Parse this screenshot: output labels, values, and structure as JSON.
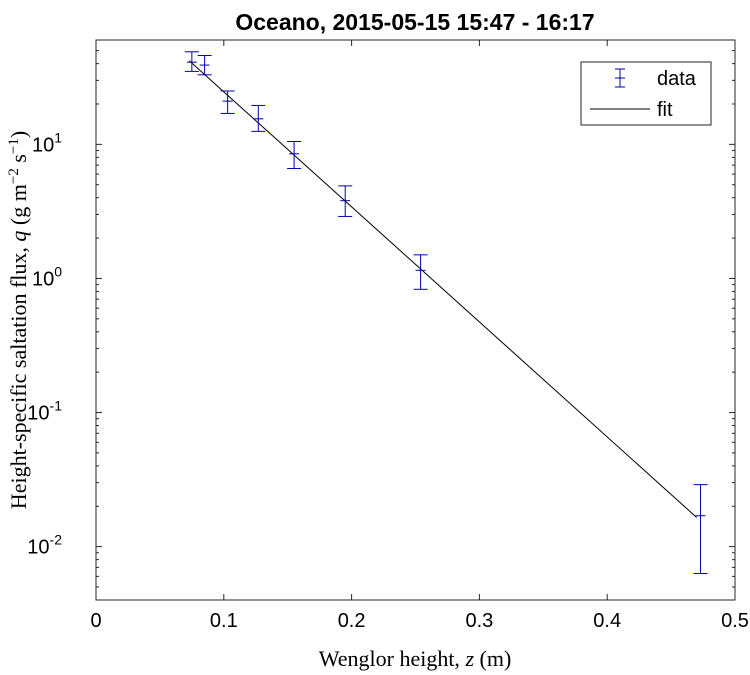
{
  "chart_data": {
    "type": "scatter",
    "title": "Oceano, 2015-05-15 15:47 - 16:17",
    "xlabel": {
      "prefix": "Wenglor height, ",
      "symbol": "z",
      "suffix": " (m)"
    },
    "ylabel": {
      "prefix": "Height-specific saltation flux, ",
      "symbol": "q",
      "unit_open": " (g m",
      "unit_exp1": "−2",
      "unit_mid": " s",
      "unit_exp2": "−1",
      "unit_close": ")"
    },
    "xlim": [
      0,
      0.5
    ],
    "ylim": [
      0.004,
      60
    ],
    "yscale": "log",
    "grid": false,
    "legend_position": "top-right",
    "x_ticks": [
      {
        "value": 0,
        "label": "0"
      },
      {
        "value": 0.1,
        "label": "0.1"
      },
      {
        "value": 0.2,
        "label": "0.2"
      },
      {
        "value": 0.3,
        "label": "0.3"
      },
      {
        "value": 0.4,
        "label": "0.4"
      },
      {
        "value": 0.5,
        "label": "0.5"
      }
    ],
    "y_ticks": [
      {
        "value": 0.01,
        "base": "10",
        "exp": "-2"
      },
      {
        "value": 0.1,
        "base": "10",
        "exp": "-1"
      },
      {
        "value": 1,
        "base": "10",
        "exp": "0"
      },
      {
        "value": 10,
        "base": "10",
        "exp": "1"
      }
    ],
    "series": [
      {
        "name": "data",
        "kind": "errorbar",
        "color": "#0000aa",
        "points": [
          {
            "x": 0.075,
            "y": 41,
            "lo": 35,
            "hi": 49
          },
          {
            "x": 0.085,
            "y": 39,
            "lo": 33,
            "hi": 46
          },
          {
            "x": 0.103,
            "y": 21,
            "lo": 17,
            "hi": 25
          },
          {
            "x": 0.127,
            "y": 15.5,
            "lo": 12.5,
            "hi": 19.5
          },
          {
            "x": 0.155,
            "y": 8.5,
            "lo": 6.6,
            "hi": 10.5
          },
          {
            "x": 0.195,
            "y": 3.8,
            "lo": 2.9,
            "hi": 4.9
          },
          {
            "x": 0.254,
            "y": 1.15,
            "lo": 0.83,
            "hi": 1.5
          },
          {
            "x": 0.473,
            "y": 0.017,
            "lo": 0.0063,
            "hi": 0.029
          }
        ]
      },
      {
        "name": "fit",
        "kind": "line",
        "color": "#000000",
        "x": [
          0.073,
          0.47
        ],
        "y": [
          42,
          0.0165
        ]
      }
    ]
  }
}
